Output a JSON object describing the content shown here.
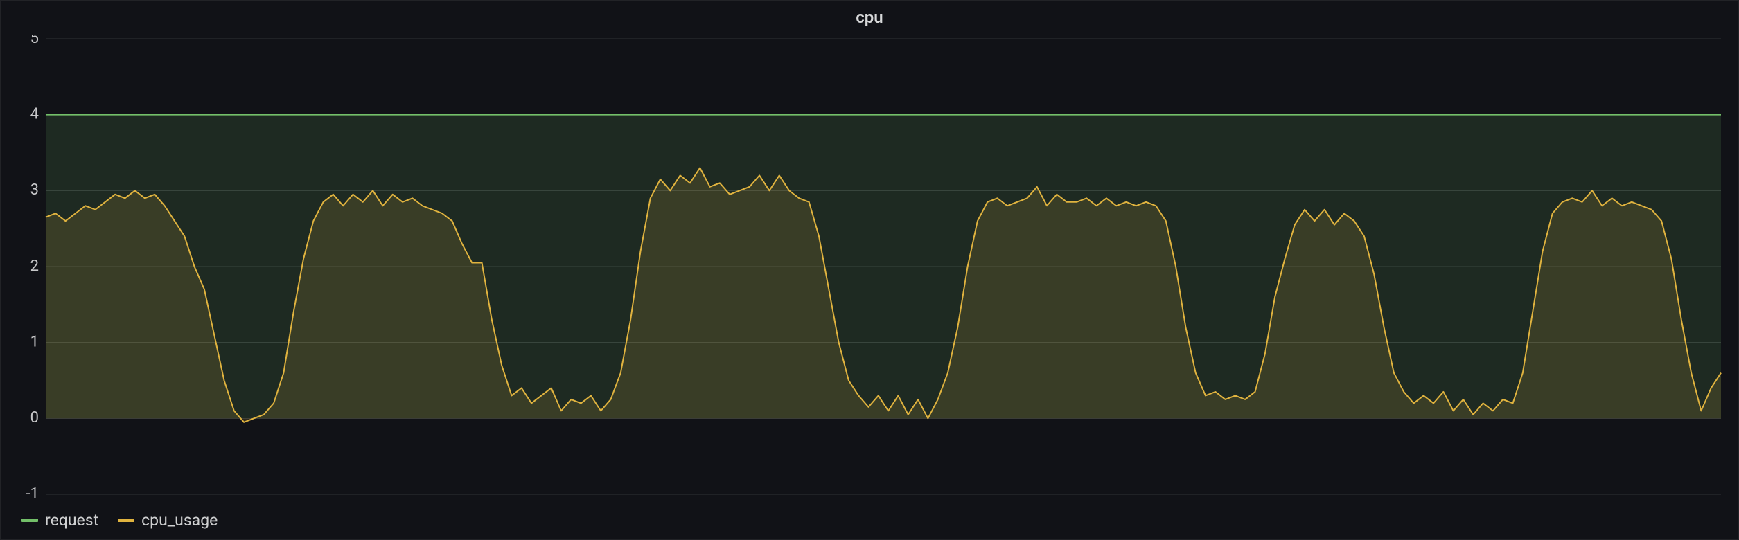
{
  "chart": {
    "type": "line",
    "title": "cpu",
    "title_fontsize": 24,
    "title_color": "#d8d9da",
    "background_color": "#111217",
    "grid_color": "#2f3136",
    "border_color": "#222327",
    "label_color": "#c7c7c9",
    "label_fontsize": 22,
    "ylim": [
      -1,
      5
    ],
    "yticks": [
      -1,
      0,
      1,
      2,
      3,
      4,
      5
    ],
    "fill_opacity": 0.14,
    "line_width": 2,
    "series": [
      {
        "name": "request",
        "color": "#73bf69",
        "constant": 4
      },
      {
        "name": "cpu_usage",
        "color": "#e0b33f",
        "values": [
          2.65,
          2.7,
          2.6,
          2.7,
          2.8,
          2.75,
          2.85,
          2.95,
          2.9,
          3.0,
          2.9,
          2.95,
          2.8,
          2.6,
          2.4,
          2.0,
          1.7,
          1.1,
          0.5,
          0.1,
          -0.05,
          0.0,
          0.05,
          0.2,
          0.6,
          1.4,
          2.1,
          2.6,
          2.85,
          2.95,
          2.8,
          2.95,
          2.85,
          3.0,
          2.8,
          2.95,
          2.85,
          2.9,
          2.8,
          2.75,
          2.7,
          2.6,
          2.3,
          2.05,
          2.05,
          1.3,
          0.7,
          0.3,
          0.4,
          0.2,
          0.3,
          0.4,
          0.1,
          0.25,
          0.2,
          0.3,
          0.1,
          0.25,
          0.6,
          1.3,
          2.2,
          2.9,
          3.15,
          3.0,
          3.2,
          3.1,
          3.3,
          3.05,
          3.1,
          2.95,
          3.0,
          3.05,
          3.2,
          3.0,
          3.2,
          3.0,
          2.9,
          2.85,
          2.4,
          1.7,
          1.0,
          0.5,
          0.3,
          0.15,
          0.3,
          0.1,
          0.3,
          0.05,
          0.25,
          0.0,
          0.25,
          0.6,
          1.2,
          2.0,
          2.6,
          2.85,
          2.9,
          2.8,
          2.85,
          2.9,
          3.05,
          2.8,
          2.95,
          2.85,
          2.85,
          2.9,
          2.8,
          2.9,
          2.8,
          2.85,
          2.8,
          2.85,
          2.8,
          2.6,
          2.0,
          1.2,
          0.6,
          0.3,
          0.35,
          0.25,
          0.3,
          0.25,
          0.35,
          0.85,
          1.6,
          2.1,
          2.55,
          2.75,
          2.6,
          2.75,
          2.55,
          2.7,
          2.6,
          2.4,
          1.9,
          1.2,
          0.6,
          0.35,
          0.2,
          0.3,
          0.2,
          0.35,
          0.1,
          0.25,
          0.05,
          0.2,
          0.1,
          0.25,
          0.2,
          0.6,
          1.4,
          2.2,
          2.7,
          2.85,
          2.9,
          2.85,
          3.0,
          2.8,
          2.9,
          2.8,
          2.85,
          2.8,
          2.75,
          2.6,
          2.1,
          1.3,
          0.6,
          0.1,
          0.4,
          0.6
        ]
      }
    ],
    "legend": {
      "position": "bottom-left",
      "items": [
        {
          "label": "request",
          "color": "#73bf69"
        },
        {
          "label": "cpu_usage",
          "color": "#e0b33f"
        }
      ]
    }
  }
}
